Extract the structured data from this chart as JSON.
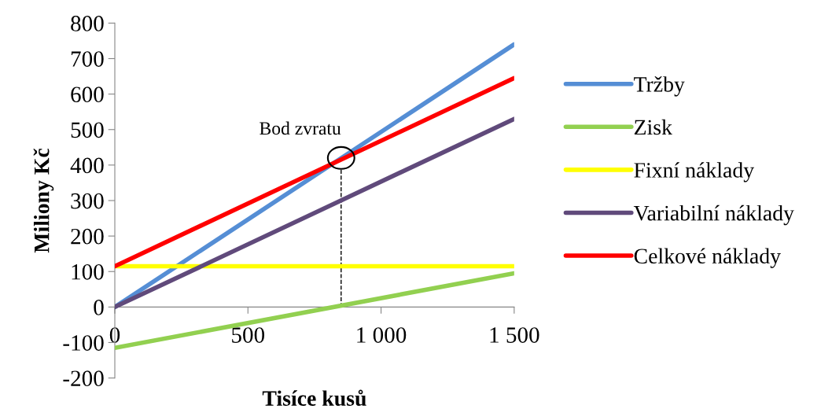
{
  "chart_data": {
    "type": "line",
    "xlabel": "Tisíce kusů",
    "ylabel": "Miliony Kč",
    "x": [
      0,
      1500
    ],
    "series": [
      {
        "name": "Tržby",
        "color": "#558ed5",
        "values": [
          0,
          740
        ]
      },
      {
        "name": "Zisk",
        "color": "#92d050",
        "values": [
          -115,
          95
        ]
      },
      {
        "name": "Fixní náklady",
        "color": "#ffff00",
        "values": [
          115,
          115
        ]
      },
      {
        "name": "Variabilní náklady",
        "color": "#604a7b",
        "values": [
          0,
          530
        ]
      },
      {
        "name": "Celkové náklady",
        "color": "#ff0000",
        "values": [
          115,
          645
        ]
      }
    ],
    "xlim": [
      0,
      1500
    ],
    "xticks": [
      0,
      500,
      {
        "value": 1000,
        "label": "1 000"
      },
      {
        "value": 1500,
        "label": "1 500"
      }
    ],
    "ylim": [
      -200,
      800
    ],
    "yticks": [
      -200,
      -100,
      0,
      100,
      200,
      300,
      400,
      500,
      600,
      700,
      800
    ],
    "ref_lines": [
      {
        "axis": "x",
        "value": 850,
        "color": "#000000",
        "line_style": "dashed"
      }
    ],
    "annotations": [
      {
        "text": "Bod zvratu",
        "x": 850,
        "y": 420
      }
    ],
    "grid": false,
    "legend": "right",
    "marker": "none",
    "line_style": "solid"
  }
}
